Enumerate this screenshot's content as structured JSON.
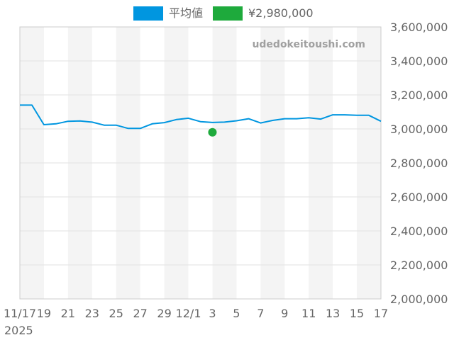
{
  "legend": [
    {
      "label": "平均値",
      "color": "#0096e0"
    },
    {
      "label": "¥2,980,000",
      "color": "#1eaa3c"
    }
  ],
  "watermark": "udedokeitoushi.com",
  "chart_data": {
    "type": "line",
    "title": "",
    "xlabel": "",
    "ylabel": "",
    "ylim": [
      2000000,
      3600000
    ],
    "y_ticks": [
      "2,000,000",
      "2,200,000",
      "2,400,000",
      "2,600,000",
      "2,800,000",
      "3,000,000",
      "3,200,000",
      "3,400,000",
      "3,600,000"
    ],
    "y_tick_values": [
      2000000,
      2200000,
      2400000,
      2600000,
      2800000,
      3000000,
      3200000,
      3400000,
      3600000
    ],
    "y_axis_side": "right",
    "grid": true,
    "legend_position": "top-center",
    "x_categories": [
      "2025-11-17",
      "2025-11-18",
      "2025-11-19",
      "2025-11-20",
      "2025-11-21",
      "2025-11-22",
      "2025-11-23",
      "2025-11-24",
      "2025-11-25",
      "2025-11-26",
      "2025-11-27",
      "2025-11-28",
      "2025-11-29",
      "2025-11-30",
      "2025-12-01",
      "2025-12-02",
      "2025-12-03",
      "2025-12-04",
      "2025-12-05",
      "2025-12-06",
      "2025-12-07",
      "2025-12-08",
      "2025-12-09",
      "2025-12-10",
      "2025-12-11",
      "2025-12-12",
      "2025-12-13",
      "2025-12-14",
      "2025-12-15",
      "2025-12-16",
      "2025-12-17"
    ],
    "x_tick_labels": [
      {
        "label": "11/17",
        "index": 0
      },
      {
        "label": "19",
        "index": 2
      },
      {
        "label": "21",
        "index": 4
      },
      {
        "label": "23",
        "index": 6
      },
      {
        "label": "25",
        "index": 8
      },
      {
        "label": "27",
        "index": 10
      },
      {
        "label": "29",
        "index": 12
      },
      {
        "label": "12/1",
        "index": 14
      },
      {
        "label": "3",
        "index": 16
      },
      {
        "label": "5",
        "index": 18
      },
      {
        "label": "7",
        "index": 20
      },
      {
        "label": "9",
        "index": 22
      },
      {
        "label": "11",
        "index": 24
      },
      {
        "label": "13",
        "index": 26
      },
      {
        "label": "15",
        "index": 28
      },
      {
        "label": "17",
        "index": 30
      }
    ],
    "x_year_label": "2025",
    "series": [
      {
        "name": "平均値",
        "color": "#0096e0",
        "values": [
          3140000,
          3140000,
          3025000,
          3030000,
          3045000,
          3047000,
          3040000,
          3022000,
          3022000,
          3003000,
          3003000,
          3030000,
          3037000,
          3055000,
          3063000,
          3043000,
          3038000,
          3040000,
          3048000,
          3060000,
          3035000,
          3050000,
          3060000,
          3060000,
          3066000,
          3058000,
          3083000,
          3083000,
          3080000,
          3080000,
          3045000
        ]
      }
    ],
    "points": [
      {
        "name": "¥2,980,000",
        "color": "#1eaa3c",
        "x": "2025-12-03",
        "y": 2980000
      }
    ]
  }
}
